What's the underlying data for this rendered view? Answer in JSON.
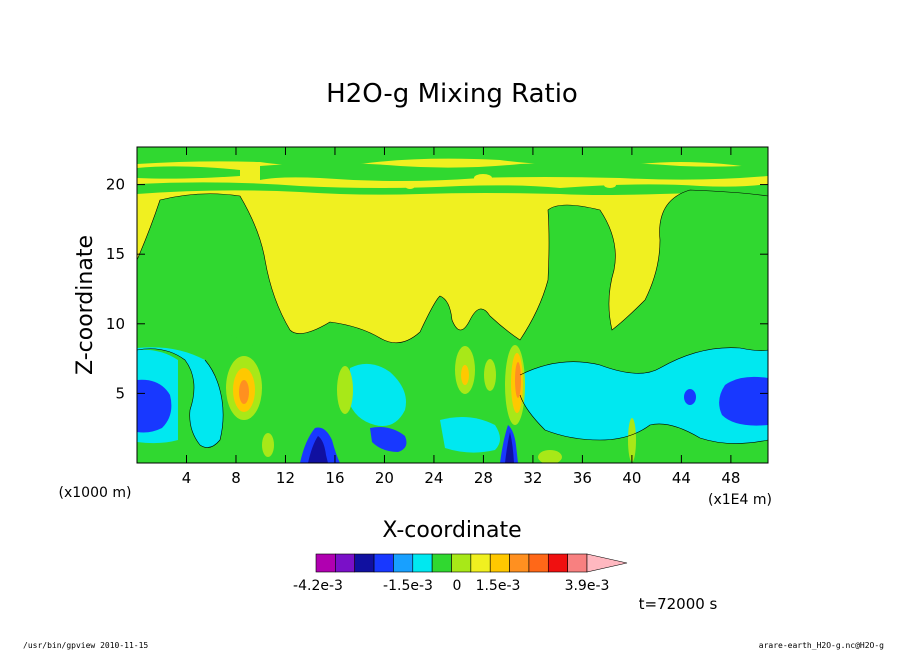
{
  "chart_data": {
    "type": "heatmap",
    "title": "H2O-g Mixing Ratio",
    "xlabel": "X-coordinate",
    "ylabel": "Z-coordinate",
    "x_unit_left": "(x1000 m)",
    "x_unit_right": "(x1E4 m)",
    "xlim": [
      0,
      51
    ],
    "ylim": [
      0,
      22.7
    ],
    "x_ticks": [
      "4",
      "8",
      "12",
      "16",
      "20",
      "24",
      "28",
      "32",
      "36",
      "40",
      "44",
      "48"
    ],
    "x_tick_values": [
      4,
      8,
      12,
      16,
      20,
      24,
      28,
      32,
      36,
      40,
      44,
      48
    ],
    "y_ticks": [
      "5",
      "10",
      "15",
      "20"
    ],
    "y_tick_values": [
      5,
      10,
      15,
      20
    ],
    "colorbar": {
      "labels": [
        "-4.2e-3",
        "-1.5e-3",
        "0",
        "1.5e-3",
        "3.9e-3"
      ],
      "colors": [
        "#b000b0",
        "#7a10c8",
        "#1010a0",
        "#1838ff",
        "#18a0ff",
        "#00e8f0",
        "#30d830",
        "#a8e818",
        "#f0f020",
        "#ffc800",
        "#ff9020",
        "#ff6818",
        "#f01010",
        "#f88080",
        "#ffb8c0"
      ]
    },
    "time_label": "t=72000 s",
    "palette": {
      "yellow": "#f0f020",
      "green": "#30d830",
      "cyan": "#00e8f0",
      "blue": "#1838ff",
      "darkblue": "#1010a0",
      "gold": "#ffc800",
      "orange": "#ff9020",
      "lightgreen": "#a8e818"
    }
  },
  "footer": {
    "left": "/usr/bin/gpview  2010-11-15",
    "right": "arare-earth_H2O-g.nc@H2O-g"
  }
}
